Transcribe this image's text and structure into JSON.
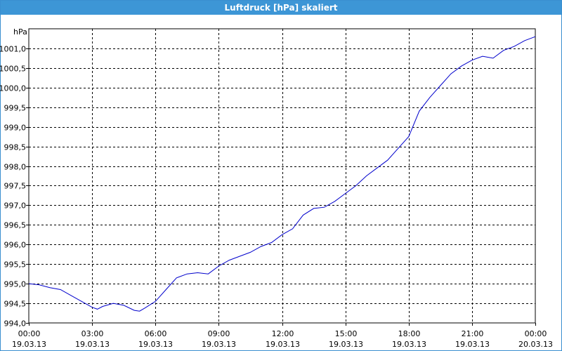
{
  "window": {
    "title": "Luftdruck [hPa] skaliert"
  },
  "chart_data": {
    "type": "line",
    "title": "Luftdruck [hPa] skaliert",
    "y_unit": "hPa",
    "ylim": [
      994.0,
      1001.5
    ],
    "xlim_hours": [
      0,
      24
    ],
    "y_ticks": [
      "994,0",
      "994,5",
      "995,0",
      "995,5",
      "996,0",
      "996,5",
      "997,0",
      "997,5",
      "998,0",
      "998,5",
      "999,0",
      "999,5",
      "1000,0",
      "1000,5",
      "1001,0"
    ],
    "x_ticks": [
      {
        "time": "00:00",
        "date": "19.03.13"
      },
      {
        "time": "03:00",
        "date": "19.03.13"
      },
      {
        "time": "06:00",
        "date": "19.03.13"
      },
      {
        "time": "09:00",
        "date": "19.03.13"
      },
      {
        "time": "12:00",
        "date": "19.03.13"
      },
      {
        "time": "15:00",
        "date": "19.03.13"
      },
      {
        "time": "18:00",
        "date": "19.03.13"
      },
      {
        "time": "21:00",
        "date": "19.03.13"
      },
      {
        "time": "00:00",
        "date": "20.03.13"
      }
    ],
    "grid": true,
    "line_color": "#0000cc",
    "series": [
      {
        "x_hours": [
          0,
          0.5,
          1,
          1.5,
          2,
          2.5,
          3,
          3.25,
          3.5,
          4,
          4.5,
          5,
          5.25,
          5.5,
          6,
          6.5,
          7,
          7.5,
          8,
          8.5,
          9,
          9.5,
          10,
          10.5,
          11,
          11.5,
          12,
          12.5,
          13,
          13.5,
          14,
          14.5,
          15,
          15.5,
          16,
          16.5,
          17,
          17.5,
          18,
          18.5,
          19,
          19.5,
          20,
          20.5,
          21,
          21.5,
          22,
          22.5,
          23,
          23.5,
          24
        ],
        "values": [
          995.0,
          994.97,
          994.9,
          994.85,
          994.7,
          994.55,
          994.4,
          994.35,
          994.42,
          994.5,
          994.45,
          994.32,
          994.3,
          994.38,
          994.55,
          994.85,
          995.15,
          995.25,
          995.28,
          995.25,
          995.45,
          995.6,
          995.7,
          995.8,
          995.95,
          996.05,
          996.25,
          996.4,
          996.75,
          996.92,
          996.95,
          997.1,
          997.3,
          997.5,
          997.75,
          997.95,
          998.15,
          998.45,
          998.75,
          999.4,
          999.75,
          1000.05,
          1000.35,
          1000.55,
          1000.7,
          1000.8,
          1000.75,
          1000.95,
          1001.05,
          1001.2,
          1001.3
        ]
      }
    ]
  }
}
